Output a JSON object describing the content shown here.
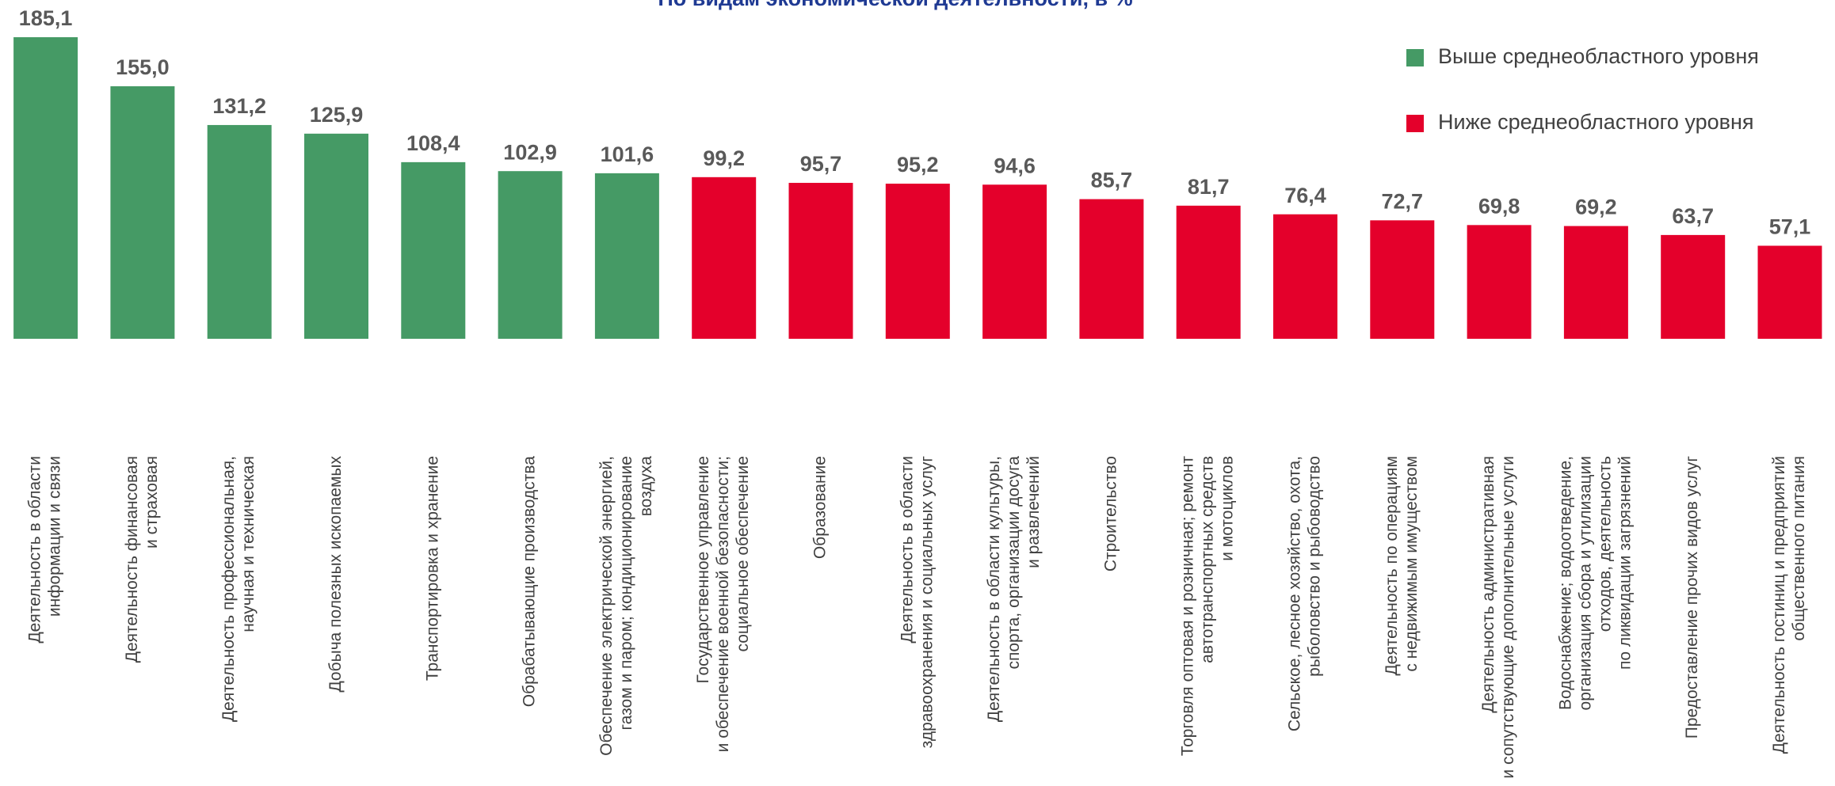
{
  "chart_data": {
    "type": "bar",
    "title": "По видам экономической деятельности, в %",
    "categories": [
      [
        "Деятельность в области",
        "информации и связи"
      ],
      [
        "Деятельность финансовая",
        "и страховая"
      ],
      [
        "Деятельность профессиональная,",
        "научная и  техническая"
      ],
      [
        "Добыча полезных ископаемых"
      ],
      [
        "Транспортировка и хранение"
      ],
      [
        "Обрабатывающие производства"
      ],
      [
        "Обеспечение электрической энергией,",
        "газом и паром; кондиционирование",
        "воздуха"
      ],
      [
        "Государственное управление",
        "и обеспечение военной безопасности;",
        "социальное обеспечение"
      ],
      [
        "Образование"
      ],
      [
        "Деятельность  в области",
        "здравоохранения и социальных услуг"
      ],
      [
        "Деятельность в области культуры,",
        "спорта, организации досуга",
        "и развлечений"
      ],
      [
        "Строительство"
      ],
      [
        "Торговля оптовая и розничная; ремонт",
        "автотранспортных средств",
        "и мотоциклов"
      ],
      [
        "Сельское, лесное хозяйство, охота,",
        "рыболовство и рыбоводство"
      ],
      [
        "Деятельность по операциям",
        "с недвижимым имуществом"
      ],
      [
        "Деятельность административная",
        "и сопутствующие дополнительные услуги"
      ],
      [
        "Водоснабжение; водоотведение,",
        "организация сбора и утилизации",
        "отходов, деятельность",
        "по ликвидации загрязнений"
      ],
      [
        "Предоставление прочих видов услуг"
      ],
      [
        "Деятельность гостиниц и предприятий",
        "общественного питания"
      ]
    ],
    "series": [
      {
        "name": "Выше среднеобластного уровня",
        "color": "#459a65",
        "values": [
          185.1,
          155.0,
          131.2,
          125.9,
          108.4,
          102.9,
          101.6,
          null,
          null,
          null,
          null,
          null,
          null,
          null,
          null,
          null,
          null,
          null,
          null
        ],
        "value_labels": [
          "185,1",
          "155,0",
          "131,2",
          "125,9",
          "108,4",
          "102,9",
          "101,6",
          null,
          null,
          null,
          null,
          null,
          null,
          null,
          null,
          null,
          null,
          null,
          null
        ]
      },
      {
        "name": "Ниже среднеобластного уровня",
        "color": "#e4002b",
        "values": [
          null,
          null,
          null,
          null,
          null,
          null,
          null,
          99.2,
          95.7,
          95.2,
          94.6,
          85.7,
          81.7,
          76.4,
          72.7,
          69.8,
          69.2,
          63.7,
          57.1
        ],
        "value_labels": [
          null,
          null,
          null,
          null,
          null,
          null,
          null,
          "99,2",
          "95,7",
          "95,2",
          "94,6",
          "85,7",
          "81,7",
          "76,4",
          "72,7",
          "69,8",
          "69,2",
          "63,7",
          "57,1"
        ]
      }
    ],
    "legend": "top-right"
  }
}
